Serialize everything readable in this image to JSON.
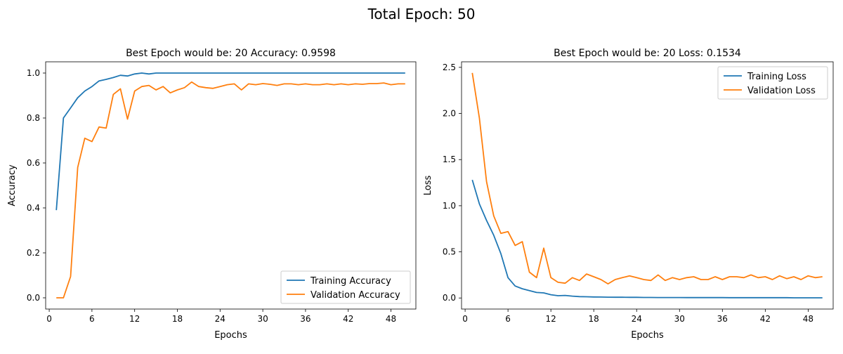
{
  "suptitle": "Total Epoch: 50",
  "chart_data": [
    {
      "type": "line",
      "title": "Best Epoch would be: 20  Accuracy: 0.9598",
      "xlabel": "Epochs",
      "ylabel": "Accuracy",
      "xlim": [
        -0.5,
        51.5
      ],
      "ylim": [
        -0.05,
        1.05
      ],
      "xticks": [
        0,
        6,
        12,
        18,
        24,
        30,
        36,
        42,
        48
      ],
      "yticks": [
        0.0,
        0.2,
        0.4,
        0.6,
        0.8,
        1.0
      ],
      "ytick_labels": [
        "0.0",
        "0.2",
        "0.4",
        "0.6",
        "0.8",
        "1.0"
      ],
      "legend_position": "lower-right",
      "x": [
        1,
        2,
        3,
        4,
        5,
        6,
        7,
        8,
        9,
        10,
        11,
        12,
        13,
        14,
        15,
        16,
        17,
        18,
        19,
        20,
        21,
        22,
        23,
        24,
        25,
        26,
        27,
        28,
        29,
        30,
        31,
        32,
        33,
        34,
        35,
        36,
        37,
        38,
        39,
        40,
        41,
        42,
        43,
        44,
        45,
        46,
        47,
        48,
        49,
        50
      ],
      "series": [
        {
          "name": "Training Accuracy",
          "color": "#1f77b4",
          "values": [
            0.39,
            0.8,
            0.845,
            0.89,
            0.92,
            0.94,
            0.965,
            0.972,
            0.98,
            0.99,
            0.987,
            0.996,
            1.0,
            0.996,
            1.0,
            1.0,
            1.0,
            1.0,
            1.0,
            1.0,
            1.0,
            1.0,
            1.0,
            1.0,
            1.0,
            1.0,
            1.0,
            1.0,
            1.0,
            1.0,
            1.0,
            1.0,
            1.0,
            1.0,
            1.0,
            1.0,
            1.0,
            1.0,
            1.0,
            1.0,
            1.0,
            1.0,
            1.0,
            1.0,
            1.0,
            1.0,
            1.0,
            1.0,
            1.0,
            1.0
          ]
        },
        {
          "name": "Validation Accuracy",
          "color": "#ff7f0e",
          "values": [
            0.0,
            0.0,
            0.095,
            0.58,
            0.71,
            0.695,
            0.76,
            0.755,
            0.905,
            0.93,
            0.795,
            0.92,
            0.94,
            0.945,
            0.925,
            0.94,
            0.912,
            0.925,
            0.935,
            0.96,
            0.94,
            0.935,
            0.932,
            0.94,
            0.948,
            0.952,
            0.925,
            0.952,
            0.948,
            0.953,
            0.95,
            0.945,
            0.952,
            0.952,
            0.948,
            0.952,
            0.948,
            0.948,
            0.952,
            0.948,
            0.952,
            0.948,
            0.952,
            0.95,
            0.953,
            0.953,
            0.956,
            0.948,
            0.952,
            0.952
          ]
        }
      ]
    },
    {
      "type": "line",
      "title": "Best Epoch would be: 20  Loss: 0.1534",
      "xlabel": "Epochs",
      "ylabel": "Loss",
      "xlim": [
        -0.5,
        51.5
      ],
      "ylim": [
        -0.12,
        2.56
      ],
      "xticks": [
        0,
        6,
        12,
        18,
        24,
        30,
        36,
        42,
        48
      ],
      "yticks": [
        0.0,
        0.5,
        1.0,
        1.5,
        2.0,
        2.5
      ],
      "ytick_labels": [
        "0.0",
        "0.5",
        "1.0",
        "1.5",
        "2.0",
        "2.5"
      ],
      "legend_position": "upper-right",
      "x": [
        1,
        2,
        3,
        4,
        5,
        6,
        7,
        8,
        9,
        10,
        11,
        12,
        13,
        14,
        15,
        16,
        17,
        18,
        19,
        20,
        21,
        22,
        23,
        24,
        25,
        26,
        27,
        28,
        29,
        30,
        31,
        32,
        33,
        34,
        35,
        36,
        37,
        38,
        39,
        40,
        41,
        42,
        43,
        44,
        45,
        46,
        47,
        48,
        49,
        50
      ],
      "series": [
        {
          "name": "Training Loss",
          "color": "#1f77b4",
          "values": [
            1.28,
            1.02,
            0.84,
            0.68,
            0.48,
            0.22,
            0.13,
            0.1,
            0.08,
            0.06,
            0.055,
            0.035,
            0.025,
            0.028,
            0.02,
            0.015,
            0.013,
            0.011,
            0.01,
            0.009,
            0.008,
            0.008,
            0.007,
            0.007,
            0.006,
            0.006,
            0.005,
            0.005,
            0.005,
            0.005,
            0.004,
            0.004,
            0.004,
            0.004,
            0.004,
            0.004,
            0.003,
            0.003,
            0.003,
            0.003,
            0.003,
            0.003,
            0.003,
            0.003,
            0.003,
            0.002,
            0.002,
            0.002,
            0.002,
            0.002
          ]
        },
        {
          "name": "Validation Loss",
          "color": "#ff7f0e",
          "values": [
            2.44,
            1.95,
            1.26,
            0.89,
            0.7,
            0.72,
            0.57,
            0.61,
            0.28,
            0.22,
            0.54,
            0.22,
            0.17,
            0.16,
            0.22,
            0.19,
            0.26,
            0.23,
            0.2,
            0.153,
            0.2,
            0.22,
            0.24,
            0.22,
            0.2,
            0.19,
            0.25,
            0.19,
            0.22,
            0.2,
            0.22,
            0.23,
            0.2,
            0.2,
            0.23,
            0.2,
            0.23,
            0.23,
            0.22,
            0.25,
            0.22,
            0.23,
            0.2,
            0.24,
            0.21,
            0.23,
            0.2,
            0.24,
            0.22,
            0.23
          ]
        }
      ]
    }
  ]
}
